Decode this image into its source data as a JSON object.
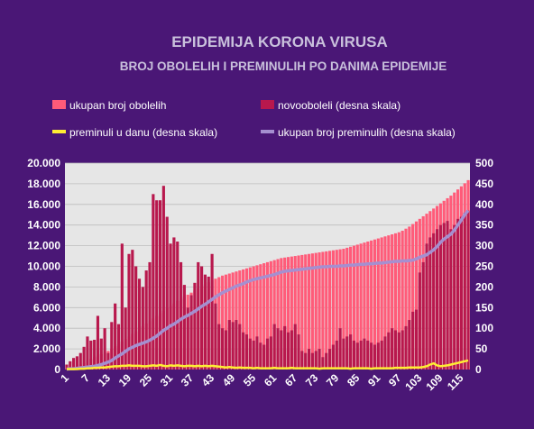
{
  "chart_data": {
    "type": "bar",
    "title": "EPIDEMIJA KORONA VIRUSA",
    "subtitle": "BROJ OBOLELIH I PREMINULIH PO DANIMA EPIDEMIJE",
    "legend": [
      {
        "name": "ukupan broj obolelih",
        "color": "#ff5b79",
        "shape": "box"
      },
      {
        "name": "novooboleli (desna skala)",
        "color": "#b8184d",
        "shape": "box"
      },
      {
        "name": "preminuli u danu (desna skala)",
        "color": "#ffee33",
        "shape": "line"
      },
      {
        "name": "ukupan broj preminulih (desna skala)",
        "color": "#a58fd0",
        "shape": "line"
      }
    ],
    "x_ticks": [
      "1",
      "7",
      "13",
      "19",
      "25",
      "31",
      "37",
      "43",
      "49",
      "55",
      "61",
      "67",
      "73",
      "79",
      "85",
      "91",
      "97",
      "103",
      "109",
      "115"
    ],
    "y_left_ticks": [
      "0",
      "2.000",
      "4.000",
      "6.000",
      "8.000",
      "10.000",
      "12.000",
      "14.000",
      "16.000",
      "18.000",
      "20.000"
    ],
    "y_right_ticks": [
      "0",
      "50",
      "100",
      "150",
      "200",
      "250",
      "300",
      "350",
      "400",
      "450",
      "500"
    ],
    "ylim_left": [
      0,
      20000
    ],
    "ylim_right": [
      0,
      500
    ],
    "days": 117,
    "series": [
      {
        "name": "ukupan broj obolelih",
        "axis": "left",
        "values": [
          50,
          110,
          200,
          380,
          500,
          650,
          900,
          1050,
          1200,
          1350,
          1500,
          1650,
          1800,
          2000,
          2250,
          2450,
          2700,
          2950,
          3200,
          3450,
          3700,
          3950,
          4200,
          4450,
          4700,
          4950,
          5200,
          5450,
          5700,
          5950,
          6200,
          6400,
          6650,
          6850,
          7050,
          7250,
          7450,
          7650,
          7850,
          8050,
          8250,
          8450,
          8650,
          8800,
          8950,
          9100,
          9200,
          9300,
          9400,
          9500,
          9600,
          9700,
          9800,
          9900,
          10000,
          10100,
          10200,
          10300,
          10400,
          10500,
          10600,
          10700,
          10800,
          10850,
          10900,
          10950,
          11000,
          11050,
          11100,
          11150,
          11200,
          11250,
          11300,
          11350,
          11400,
          11450,
          11500,
          11550,
          11600,
          11650,
          11700,
          11800,
          11900,
          12000,
          12100,
          12200,
          12300,
          12400,
          12500,
          12600,
          12700,
          12800,
          12900,
          13000,
          13100,
          13200,
          13300,
          13450,
          13650,
          13850,
          14100,
          14350,
          14600,
          14850,
          15100,
          15350,
          15600,
          15850,
          16100,
          16350,
          16600,
          16850,
          17150,
          17450,
          17750,
          18050,
          18350
        ]
      },
      {
        "name": "novooboleli (desna skala)",
        "axis": "right",
        "values": [
          12,
          20,
          28,
          32,
          40,
          55,
          80,
          70,
          72,
          130,
          75,
          100,
          40,
          115,
          160,
          110,
          305,
          150,
          280,
          290,
          250,
          220,
          200,
          240,
          260,
          425,
          410,
          410,
          445,
          370,
          305,
          320,
          310,
          260,
          205,
          150,
          180,
          210,
          260,
          250,
          230,
          225,
          280,
          160,
          110,
          100,
          95,
          120,
          115,
          120,
          110,
          90,
          85,
          75,
          70,
          80,
          65,
          60,
          75,
          80,
          110,
          100,
          95,
          105,
          90,
          95,
          110,
          85,
          45,
          40,
          50,
          40,
          45,
          50,
          30,
          40,
          50,
          60,
          70,
          100,
          75,
          80,
          85,
          70,
          65,
          70,
          75,
          70,
          65,
          60,
          65,
          70,
          80,
          90,
          100,
          95,
          90,
          95,
          105,
          120,
          140,
          145,
          235,
          260,
          305,
          320,
          330,
          340,
          350,
          355,
          360,
          340,
          350,
          365,
          370,
          380,
          385
        ]
      },
      {
        "name": "preminuli u danu (desna skala)",
        "axis": "right",
        "values": [
          1,
          1,
          1,
          1,
          2,
          2,
          3,
          3,
          4,
          4,
          5,
          5,
          6,
          7,
          8,
          8,
          9,
          9,
          10,
          9,
          9,
          9,
          8,
          8,
          9,
          10,
          9,
          11,
          9,
          8,
          10,
          9,
          10,
          9,
          8,
          9,
          9,
          8,
          9,
          8,
          9,
          8,
          9,
          8,
          7,
          6,
          5,
          6,
          5,
          4,
          5,
          4,
          4,
          4,
          3,
          4,
          3,
          3,
          3,
          3,
          4,
          3,
          3,
          3,
          3,
          4,
          3,
          3,
          3,
          3,
          3,
          3,
          3,
          2,
          3,
          3,
          3,
          3,
          3,
          3,
          3,
          3,
          2,
          3,
          3,
          3,
          3,
          3,
          2,
          3,
          3,
          3,
          3,
          3,
          3,
          4,
          4,
          4,
          4,
          5,
          5,
          5,
          5,
          6,
          8,
          12,
          15,
          10,
          8,
          9,
          10,
          12,
          14,
          16,
          18,
          20,
          22
        ]
      },
      {
        "name": "ukupan broj preminulih (desna skala)",
        "axis": "right",
        "values": [
          1,
          2,
          2,
          3,
          4,
          5,
          6,
          7,
          8,
          10,
          12,
          15,
          18,
          22,
          28,
          33,
          38,
          44,
          50,
          54,
          58,
          61,
          64,
          67,
          71,
          76,
          81,
          88,
          95,
          100,
          106,
          110,
          116,
          122,
          127,
          131,
          136,
          141,
          147,
          153,
          158,
          164,
          170,
          176,
          181,
          186,
          190,
          194,
          198,
          202,
          205,
          208,
          212,
          215,
          218,
          220,
          222,
          224,
          226,
          228,
          230,
          233,
          236,
          238,
          239,
          240,
          241,
          242,
          243,
          244,
          245,
          246,
          247,
          248,
          249,
          249,
          250,
          250,
          250,
          251,
          251,
          252,
          253,
          253,
          254,
          255,
          255,
          256,
          256,
          257,
          258,
          258,
          259,
          260,
          261,
          262,
          262,
          263,
          263,
          264,
          265,
          268,
          272,
          275,
          278,
          284,
          290,
          298,
          308,
          316,
          322,
          328,
          338,
          350,
          362,
          375,
          385
        ]
      }
    ]
  }
}
